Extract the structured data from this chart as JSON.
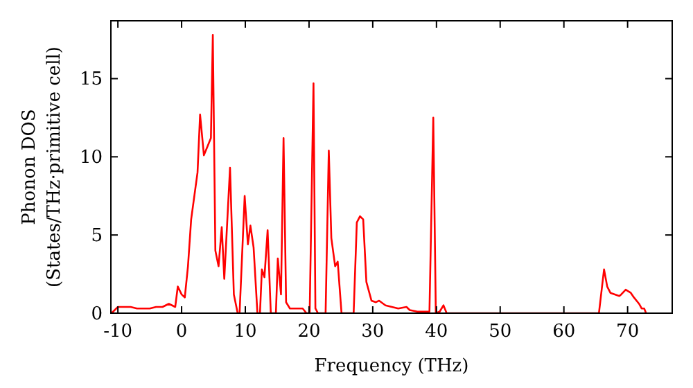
{
  "chart_data": {
    "type": "line",
    "xlabel": "Frequency (THz)",
    "ylabel": "Phonon DOS\n(States/THz·primitive cell)",
    "xlim": [
      -11.1,
      77
    ],
    "ylim": [
      0,
      18.7
    ],
    "xticks": [
      -10,
      0,
      10,
      20,
      30,
      40,
      50,
      60,
      70
    ],
    "yticks": [
      0,
      5,
      10,
      15
    ],
    "grid": false,
    "marker": "none",
    "line_style": "solid",
    "series": [
      {
        "color": "#ff0000",
        "x": [
          -11,
          -10,
          -9,
          -8,
          -7,
          -6,
          -5,
          -4,
          -3,
          -2,
          -1,
          -0.6,
          0,
          0.5,
          1,
          1.5,
          2.5,
          2.9,
          3.5,
          4.6,
          4.9,
          5.3,
          5.8,
          6.3,
          6.7,
          7.6,
          8.2,
          8.8,
          9.1,
          9.9,
          10.4,
          10.8,
          11.3,
          11.9,
          12.3,
          12.6,
          13,
          13.5,
          14,
          14.8,
          15.1,
          15.6,
          16,
          16.4,
          17,
          19,
          19.6,
          20.1,
          20.7,
          21,
          21.4,
          22.6,
          23.1,
          23.5,
          24.1,
          24.5,
          25.1,
          27,
          27.5,
          28,
          28.5,
          29,
          29.8,
          30.5,
          31,
          32,
          33,
          34,
          35.3,
          35.8,
          37,
          38.9,
          39.5,
          39.9,
          40.5,
          41.1,
          41.6,
          65.5,
          66.3,
          66.8,
          67.3,
          68,
          68.7,
          69,
          69.7,
          70.5,
          71,
          71.8,
          72.2,
          72.6,
          72.9
        ],
        "values": [
          0,
          0.4,
          0.4,
          0.4,
          0.3,
          0.3,
          0.3,
          0.4,
          0.4,
          0.6,
          0.4,
          1.7,
          1.2,
          1,
          3,
          6,
          9,
          12.7,
          10.1,
          11.2,
          17.8,
          4,
          3,
          5.5,
          2.2,
          9.3,
          1.2,
          0,
          0,
          7.5,
          4.4,
          5.6,
          4.2,
          0,
          0,
          2.8,
          2.3,
          5.3,
          0,
          0,
          3.5,
          1.2,
          11.2,
          0.7,
          0.3,
          0.3,
          0,
          0,
          14.7,
          0.3,
          0,
          0,
          10.4,
          4.8,
          3,
          3.3,
          0,
          0,
          5.8,
          6.2,
          6,
          2,
          0.8,
          0.7,
          0.8,
          0.5,
          0.4,
          0.3,
          0.4,
          0.2,
          0.1,
          0.1,
          12.5,
          0,
          0.1,
          0.5,
          0,
          0,
          2.8,
          1.7,
          1.3,
          1.2,
          1.1,
          1.2,
          1.5,
          1.3,
          1,
          0.6,
          0.3,
          0.3,
          0
        ]
      }
    ]
  }
}
